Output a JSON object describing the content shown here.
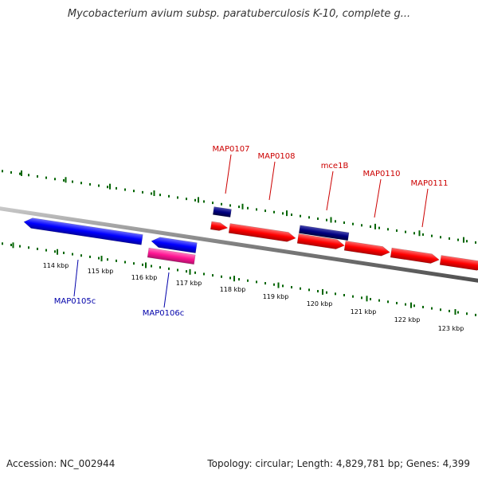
{
  "title": "Mycobacterium avium subsp. paratuberculosis K-10, complete g...",
  "footer": {
    "accession": "Accession: NC_002944",
    "summary": "Topology: circular; Length: 4,829,781 bp; Genes: 4,399"
  },
  "colors": {
    "forward_gene": "#ff0000",
    "reverse_gene": "#0000ff",
    "dark_gene": "#000080",
    "pink_gene": "#ff1493",
    "backbone": "#808080",
    "tick": "#006400",
    "forward_label": "#cc0000",
    "reverse_label": "#0000aa"
  },
  "kbp_labels": [
    "114 kbp",
    "115 kbp",
    "116 kbp",
    "117 kbp",
    "118 kbp",
    "119 kbp",
    "120 kbp",
    "121 kbp",
    "122 kbp",
    "123 kbp"
  ],
  "forward_gene_labels": [
    "MAP0107",
    "MAP0108",
    "mce1B",
    "MAP0110",
    "MAP0111"
  ],
  "reverse_gene_labels": [
    "MAP0105c",
    "MAP0106c"
  ]
}
